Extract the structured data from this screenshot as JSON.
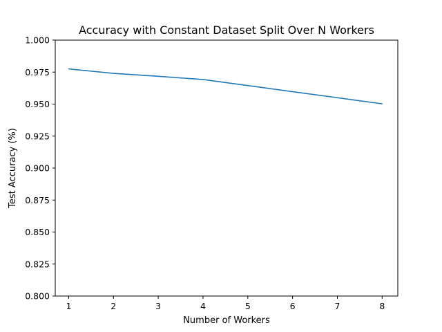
{
  "chart_data": {
    "type": "line",
    "title": "Accuracy with Constant Dataset Split Over N Workers",
    "xlabel": "Number of Workers",
    "ylabel": "Test Accuracy (%)",
    "xlim": [
      0.7,
      8.35
    ],
    "ylim": [
      0.8,
      1.0
    ],
    "x_ticks": [
      "1",
      "2",
      "3",
      "4",
      "5",
      "6",
      "7",
      "8"
    ],
    "y_ticks": [
      "0.800",
      "0.825",
      "0.850",
      "0.875",
      "0.900",
      "0.925",
      "0.950",
      "0.975",
      "1.000"
    ],
    "grid": false,
    "series": [
      {
        "color": "#1f77b4",
        "x": [
          1,
          2,
          3,
          4,
          5,
          6,
          7,
          8
        ],
        "y": [
          0.9775,
          0.974,
          0.9717,
          0.9692,
          0.9645,
          0.9597,
          0.955,
          0.9502
        ]
      }
    ]
  }
}
